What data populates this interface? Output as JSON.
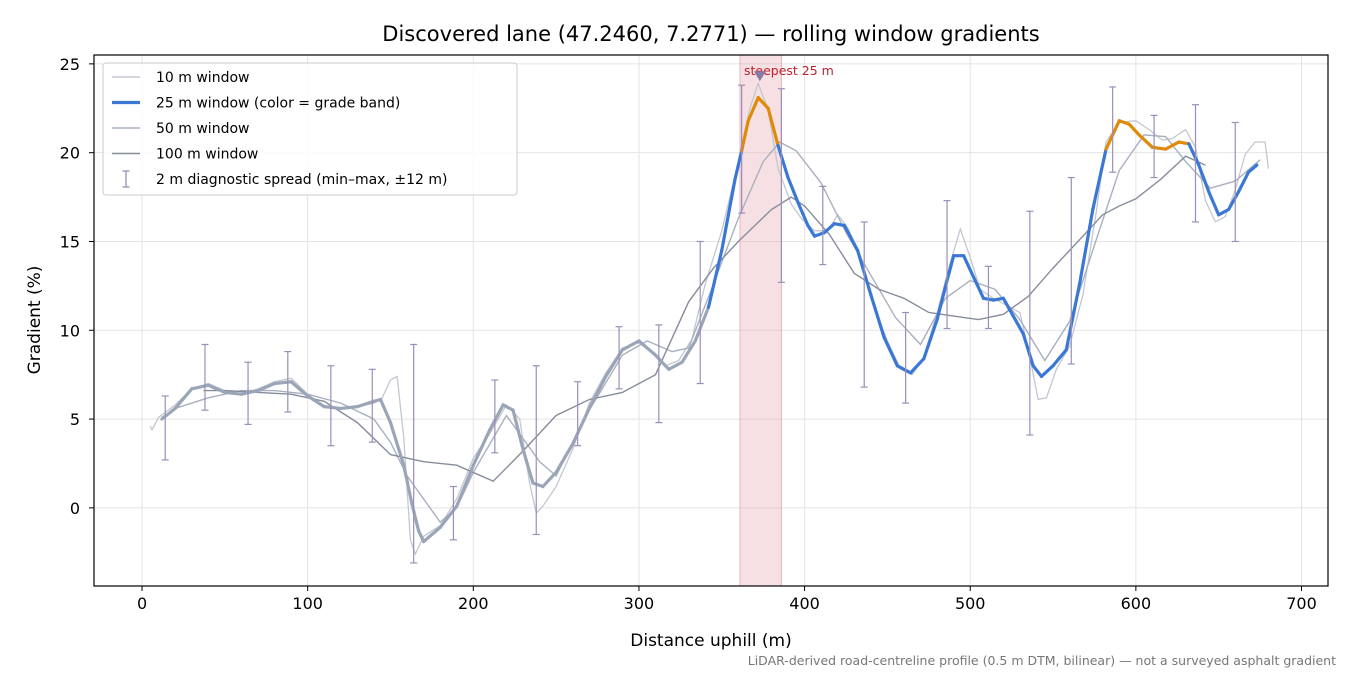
{
  "chart_data": {
    "type": "line",
    "title": "Discovered lane (47.2460, 7.2771) — rolling window gradients",
    "xlabel": "Distance uphill (m)",
    "ylabel": "Gradient (%)",
    "xlim": [
      -29,
      716
    ],
    "ylim": [
      -4.4,
      25.5
    ],
    "xticks": [
      0,
      100,
      200,
      300,
      400,
      500,
      600,
      700
    ],
    "yticks": [
      0,
      5,
      10,
      15,
      20,
      25
    ],
    "grid": true,
    "legend_position": "top-left",
    "series": [
      {
        "name": "10 m window",
        "color": "#c3c7d0",
        "points": [
          [
            5,
            4.6
          ],
          [
            6,
            4.4
          ],
          [
            10,
            5.1
          ],
          [
            20,
            5.8
          ],
          [
            30,
            6.7
          ],
          [
            40,
            7.0
          ],
          [
            50,
            6.6
          ],
          [
            60,
            6.4
          ],
          [
            70,
            6.7
          ],
          [
            80,
            7.1
          ],
          [
            90,
            7.3
          ],
          [
            100,
            6.4
          ],
          [
            110,
            5.7
          ],
          [
            120,
            5.6
          ],
          [
            130,
            5.7
          ],
          [
            140,
            5.9
          ],
          [
            145,
            6.2
          ],
          [
            150,
            7.2
          ],
          [
            154,
            7.4
          ],
          [
            158,
            4.0
          ],
          [
            162,
            -1.8
          ],
          [
            165,
            -2.6
          ],
          [
            170,
            -1.6
          ],
          [
            180,
            -1.0
          ],
          [
            190,
            0.5
          ],
          [
            200,
            2.8
          ],
          [
            210,
            4.2
          ],
          [
            220,
            5.8
          ],
          [
            228,
            5.0
          ],
          [
            234,
            1.4
          ],
          [
            238,
            -0.3
          ],
          [
            242,
            0.1
          ],
          [
            250,
            1.2
          ],
          [
            260,
            3.3
          ],
          [
            270,
            5.9
          ],
          [
            280,
            7.6
          ],
          [
            290,
            9.0
          ],
          [
            300,
            9.3
          ],
          [
            310,
            8.6
          ],
          [
            316,
            8.0
          ],
          [
            324,
            8.3
          ],
          [
            332,
            9.5
          ],
          [
            340,
            12.6
          ],
          [
            350,
            15.6
          ],
          [
            358,
            18.7
          ],
          [
            363,
            20.8
          ],
          [
            367,
            22.5
          ],
          [
            372,
            23.9
          ],
          [
            378,
            22.4
          ],
          [
            384,
            19.1
          ],
          [
            392,
            17.1
          ],
          [
            398,
            16.3
          ],
          [
            406,
            15.6
          ],
          [
            414,
            15.6
          ],
          [
            420,
            16.5
          ],
          [
            426,
            15.8
          ],
          [
            434,
            14.1
          ],
          [
            442,
            11.3
          ],
          [
            450,
            9.4
          ],
          [
            458,
            7.8
          ],
          [
            465,
            7.5
          ],
          [
            472,
            8.5
          ],
          [
            480,
            11.0
          ],
          [
            488,
            13.8
          ],
          [
            494,
            15.7
          ],
          [
            500,
            14.1
          ],
          [
            506,
            12.3
          ],
          [
            514,
            11.8
          ],
          [
            522,
            11.4
          ],
          [
            530,
            11.0
          ],
          [
            536,
            8.5
          ],
          [
            541,
            6.1
          ],
          [
            546,
            6.2
          ],
          [
            552,
            7.8
          ],
          [
            560,
            9.1
          ],
          [
            568,
            12.0
          ],
          [
            576,
            16.6
          ],
          [
            582,
            20.6
          ],
          [
            590,
            21.7
          ],
          [
            600,
            21.8
          ],
          [
            608,
            21.3
          ],
          [
            616,
            20.7
          ],
          [
            622,
            20.8
          ],
          [
            630,
            21.3
          ],
          [
            636,
            20.3
          ],
          [
            642,
            17.3
          ],
          [
            648,
            16.1
          ],
          [
            654,
            16.4
          ],
          [
            660,
            17.9
          ],
          [
            666,
            19.9
          ],
          [
            672,
            20.6
          ],
          [
            678,
            20.6
          ],
          [
            680,
            19.1
          ]
        ]
      },
      {
        "name": "50 m window",
        "color": "#a8b0bf",
        "points": [
          [
            12,
            5.1
          ],
          [
            20,
            5.6
          ],
          [
            40,
            6.2
          ],
          [
            60,
            6.6
          ],
          [
            80,
            6.6
          ],
          [
            100,
            6.4
          ],
          [
            120,
            5.9
          ],
          [
            140,
            5.0
          ],
          [
            150,
            3.7
          ],
          [
            160,
            1.8
          ],
          [
            170,
            0.5
          ],
          [
            180,
            -0.8
          ],
          [
            190,
            0.0
          ],
          [
            200,
            2.0
          ],
          [
            220,
            5.2
          ],
          [
            240,
            2.6
          ],
          [
            250,
            1.8
          ],
          [
            270,
            5.5
          ],
          [
            290,
            8.6
          ],
          [
            305,
            9.4
          ],
          [
            320,
            8.8
          ],
          [
            330,
            9.0
          ],
          [
            345,
            12.6
          ],
          [
            360,
            16.3
          ],
          [
            375,
            19.5
          ],
          [
            385,
            20.6
          ],
          [
            395,
            20.1
          ],
          [
            410,
            18.3
          ],
          [
            425,
            15.5
          ],
          [
            440,
            13.1
          ],
          [
            455,
            10.7
          ],
          [
            470,
            9.2
          ],
          [
            485,
            11.8
          ],
          [
            500,
            12.8
          ],
          [
            515,
            12.3
          ],
          [
            530,
            10.6
          ],
          [
            545,
            8.3
          ],
          [
            560,
            10.5
          ],
          [
            575,
            14.8
          ],
          [
            590,
            19.0
          ],
          [
            605,
            21.0
          ],
          [
            618,
            20.9
          ],
          [
            630,
            19.5
          ],
          [
            645,
            18.0
          ],
          [
            660,
            18.4
          ],
          [
            675,
            19.6
          ]
        ]
      },
      {
        "name": "100 m window",
        "color": "#878d9c",
        "points": [
          [
            37,
            6.6
          ],
          [
            50,
            6.6
          ],
          [
            70,
            6.5
          ],
          [
            90,
            6.4
          ],
          [
            110,
            6.0
          ],
          [
            130,
            4.8
          ],
          [
            150,
            3.0
          ],
          [
            170,
            2.6
          ],
          [
            190,
            2.4
          ],
          [
            212,
            1.5
          ],
          [
            230,
            3.2
          ],
          [
            250,
            5.2
          ],
          [
            270,
            6.1
          ],
          [
            290,
            6.5
          ],
          [
            310,
            7.5
          ],
          [
            330,
            11.6
          ],
          [
            345,
            13.5
          ],
          [
            360,
            15.0
          ],
          [
            380,
            16.8
          ],
          [
            392,
            17.5
          ],
          [
            400,
            17.0
          ],
          [
            415,
            15.4
          ],
          [
            430,
            13.2
          ],
          [
            445,
            12.3
          ],
          [
            460,
            11.8
          ],
          [
            475,
            11.0
          ],
          [
            490,
            10.8
          ],
          [
            505,
            10.6
          ],
          [
            520,
            10.9
          ],
          [
            535,
            11.9
          ],
          [
            550,
            13.5
          ],
          [
            565,
            15.0
          ],
          [
            580,
            16.5
          ],
          [
            590,
            17.0
          ],
          [
            600,
            17.4
          ],
          [
            615,
            18.5
          ],
          [
            630,
            19.8
          ],
          [
            642,
            19.3
          ]
        ]
      },
      {
        "name": "25 m window (color = grade band)",
        "color": "#3b78d6",
        "steep_color": "#e08a0a",
        "muted_color": "#9aa6b8",
        "points": [
          [
            12,
            5.0
          ],
          [
            20,
            5.6
          ],
          [
            30,
            6.7
          ],
          [
            40,
            6.9
          ],
          [
            50,
            6.5
          ],
          [
            60,
            6.4
          ],
          [
            70,
            6.6
          ],
          [
            80,
            7.0
          ],
          [
            90,
            7.1
          ],
          [
            100,
            6.3
          ],
          [
            110,
            5.7
          ],
          [
            120,
            5.6
          ],
          [
            130,
            5.7
          ],
          [
            140,
            6.0
          ],
          [
            144,
            6.1
          ],
          [
            150,
            4.8
          ],
          [
            158,
            2.4
          ],
          [
            163,
            0.2
          ],
          [
            167,
            -1.3
          ],
          [
            170,
            -1.9
          ],
          [
            180,
            -1.1
          ],
          [
            190,
            0.1
          ],
          [
            200,
            2.4
          ],
          [
            210,
            4.4
          ],
          [
            218,
            5.8
          ],
          [
            224,
            5.5
          ],
          [
            230,
            3.3
          ],
          [
            236,
            1.4
          ],
          [
            242,
            1.2
          ],
          [
            250,
            2.0
          ],
          [
            260,
            3.6
          ],
          [
            270,
            5.6
          ],
          [
            280,
            7.4
          ],
          [
            290,
            8.9
          ],
          [
            300,
            9.4
          ],
          [
            310,
            8.6
          ],
          [
            318,
            7.8
          ],
          [
            326,
            8.2
          ],
          [
            334,
            9.4
          ],
          [
            342,
            11.3
          ],
          [
            350,
            14.5
          ],
          [
            358,
            18.5
          ],
          [
            362,
            20.1
          ],
          [
            366,
            21.8
          ],
          [
            372,
            23.1
          ],
          [
            378,
            22.5
          ],
          [
            384,
            20.4
          ],
          [
            390,
            18.6
          ],
          [
            396,
            17.2
          ],
          [
            402,
            15.9
          ],
          [
            406,
            15.3
          ],
          [
            412,
            15.5
          ],
          [
            418,
            16.0
          ],
          [
            424,
            15.9
          ],
          [
            432,
            14.5
          ],
          [
            440,
            12.0
          ],
          [
            448,
            9.6
          ],
          [
            456,
            8.0
          ],
          [
            464,
            7.6
          ],
          [
            472,
            8.4
          ],
          [
            480,
            10.6
          ],
          [
            486,
            12.8
          ],
          [
            490,
            14.2
          ],
          [
            496,
            14.2
          ],
          [
            502,
            13.0
          ],
          [
            508,
            11.8
          ],
          [
            514,
            11.7
          ],
          [
            520,
            11.8
          ],
          [
            526,
            10.8
          ],
          [
            532,
            9.8
          ],
          [
            538,
            8.0
          ],
          [
            543,
            7.4
          ],
          [
            550,
            8.0
          ],
          [
            558,
            8.9
          ],
          [
            566,
            12.6
          ],
          [
            574,
            16.8
          ],
          [
            582,
            20.2
          ],
          [
            590,
            21.8
          ],
          [
            596,
            21.6
          ],
          [
            602,
            21.0
          ],
          [
            610,
            20.3
          ],
          [
            618,
            20.2
          ],
          [
            626,
            20.6
          ],
          [
            632,
            20.5
          ],
          [
            638,
            19.3
          ],
          [
            644,
            17.8
          ],
          [
            650,
            16.5
          ],
          [
            656,
            16.8
          ],
          [
            662,
            17.8
          ],
          [
            668,
            18.9
          ],
          [
            673,
            19.3
          ]
        ],
        "muted_ranges": [
          [
            0,
            345
          ]
        ],
        "steep_threshold": 20
      }
    ],
    "errorbars": {
      "name": "2 m diagnostic spread (min–max, ±12 m)",
      "color": "#9a8fb8",
      "bars": [
        [
          14,
          2.7,
          6.3
        ],
        [
          38,
          5.5,
          9.2
        ],
        [
          64,
          4.7,
          8.2
        ],
        [
          88,
          5.4,
          8.8
        ],
        [
          114,
          3.5,
          8.0
        ],
        [
          139,
          3.7,
          7.8
        ],
        [
          164,
          -3.1,
          9.2
        ],
        [
          188,
          -1.8,
          1.2
        ],
        [
          213,
          3.1,
          7.2
        ],
        [
          238,
          -1.5,
          8.0
        ],
        [
          263,
          3.5,
          7.1
        ],
        [
          288,
          6.7,
          10.2
        ],
        [
          312,
          4.8,
          10.3
        ],
        [
          337,
          7.0,
          15.0
        ],
        [
          362,
          16.6,
          23.8
        ],
        [
          386,
          12.7,
          23.6
        ],
        [
          411,
          13.7,
          18.1
        ],
        [
          436,
          6.8,
          16.1
        ],
        [
          461,
          5.9,
          11.0
        ],
        [
          486,
          10.1,
          17.3
        ],
        [
          511,
          10.1,
          13.6
        ],
        [
          536,
          4.1,
          16.7
        ],
        [
          561,
          8.1,
          18.6
        ],
        [
          586,
          18.9,
          23.7
        ],
        [
          611,
          18.6,
          22.1
        ],
        [
          636,
          16.1,
          22.7
        ],
        [
          660,
          15.0,
          21.7
        ]
      ]
    },
    "highlight_band": {
      "x0": 361,
      "x1": 386,
      "color": "#e8a6ae"
    },
    "marker": {
      "x": 373,
      "y": 24.3,
      "label": "steepest 25 m"
    }
  },
  "legend": [
    {
      "label": "10 m window",
      "kind": "line-thin",
      "color": "#c3c7d0"
    },
    {
      "label": "25 m window (color = grade band)",
      "kind": "line-thick",
      "color": "#3b78d6"
    },
    {
      "label": "50 m window",
      "kind": "line-thin",
      "color": "#a8b0bf"
    },
    {
      "label": "100 m window",
      "kind": "line-thin",
      "color": "#878d9c"
    },
    {
      "label": "2 m diagnostic spread (min–max, ±12 m)",
      "kind": "errorbar",
      "color": "#9a8fb8"
    }
  ],
  "footnote": "LiDAR-derived road-centreline profile (0.5 m DTM, bilinear) — not a surveyed asphalt gradient"
}
